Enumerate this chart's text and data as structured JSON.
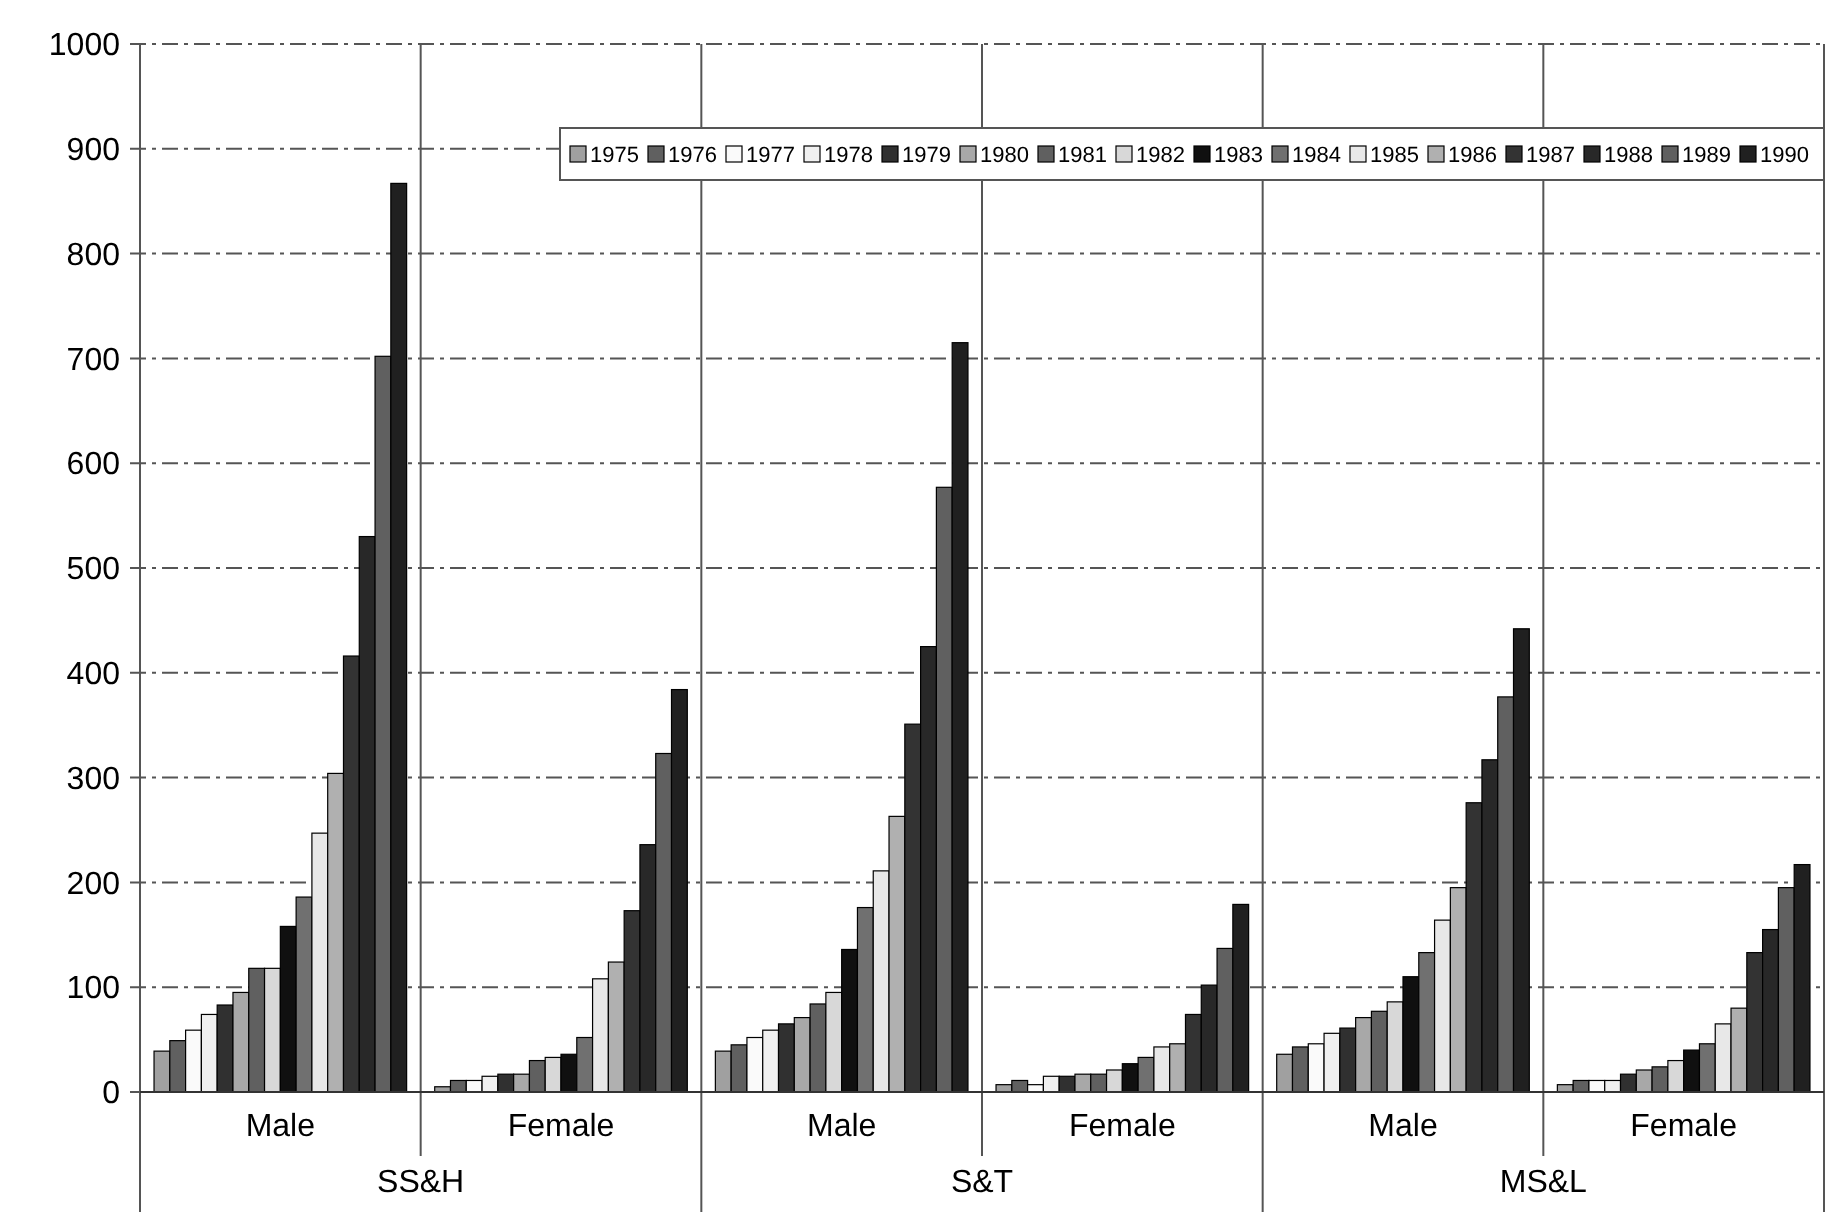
{
  "chart_data": {
    "type": "bar",
    "categories": [
      "Male",
      "Female",
      "Male",
      "Female",
      "Male",
      "Female"
    ],
    "annotations": [
      "SS&H",
      "S&T",
      "MS&L"
    ],
    "ylim": [
      0,
      1000
    ],
    "yticks": [
      0,
      100,
      200,
      300,
      400,
      500,
      600,
      700,
      800,
      900,
      1000
    ],
    "grid": "y",
    "legend": "top right",
    "series": [
      {
        "name": "1975",
        "color": "#a0a0a0",
        "values": [
          39,
          5,
          39,
          7,
          36,
          7
        ]
      },
      {
        "name": "1976",
        "color": "#606060",
        "values": [
          49,
          11,
          45,
          11,
          43,
          11
        ]
      },
      {
        "name": "1977",
        "color": "#fafafa",
        "values": [
          59,
          11,
          52,
          7,
          46,
          11
        ]
      },
      {
        "name": "1978",
        "color": "#f0f0f0",
        "values": [
          74,
          15,
          59,
          15,
          56,
          11
        ]
      },
      {
        "name": "1979",
        "color": "#303030",
        "values": [
          83,
          17,
          65,
          15,
          61,
          17
        ]
      },
      {
        "name": "1980",
        "color": "#a8a8a8",
        "values": [
          95,
          17,
          71,
          17,
          71,
          21
        ]
      },
      {
        "name": "1981",
        "color": "#606060",
        "values": [
          118,
          30,
          84,
          17,
          77,
          24
        ]
      },
      {
        "name": "1982",
        "color": "#d8d8d8",
        "values": [
          118,
          33,
          95,
          21,
          86,
          30
        ]
      },
      {
        "name": "1983",
        "color": "#101010",
        "values": [
          158,
          36,
          136,
          27,
          110,
          40
        ]
      },
      {
        "name": "1984",
        "color": "#707070",
        "values": [
          186,
          52,
          176,
          33,
          133,
          46
        ]
      },
      {
        "name": "1985",
        "color": "#e8e8e8",
        "values": [
          247,
          108,
          211,
          43,
          164,
          65
        ]
      },
      {
        "name": "1986",
        "color": "#b0b0b0",
        "values": [
          304,
          124,
          263,
          46,
          195,
          80
        ]
      },
      {
        "name": "1987",
        "color": "#333333",
        "values": [
          416,
          173,
          351,
          74,
          276,
          133
        ]
      },
      {
        "name": "1988",
        "color": "#282828",
        "values": [
          530,
          236,
          425,
          102,
          317,
          155
        ]
      },
      {
        "name": "1989",
        "color": "#606060",
        "values": [
          702,
          323,
          577,
          137,
          377,
          195
        ]
      },
      {
        "name": "1990",
        "color": "#202020",
        "values": [
          867,
          384,
          715,
          179,
          442,
          217
        ]
      }
    ]
  }
}
